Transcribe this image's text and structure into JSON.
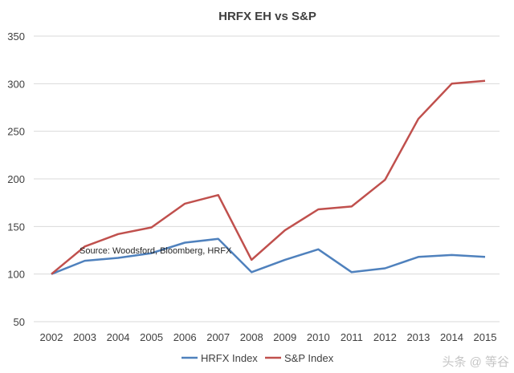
{
  "chart_data": {
    "type": "line",
    "title": "HRFX EH vs S&P",
    "annotation": "Source: Woodsford, Bloomberg, HRFX",
    "x": [
      2002,
      2003,
      2004,
      2005,
      2006,
      2007,
      2008,
      2009,
      2010,
      2011,
      2012,
      2013,
      2014,
      2015
    ],
    "x_tick_labels": [
      "2002",
      "2003",
      "2004",
      "2005",
      "2006",
      "2007",
      "2008",
      "2009",
      "2010",
      "2011",
      "2012",
      "2013",
      "2014",
      "2015"
    ],
    "y_tick_labels": [
      "50",
      "100",
      "150",
      "200",
      "250",
      "300",
      "350"
    ],
    "y_ticks": [
      50,
      100,
      150,
      200,
      250,
      300,
      350
    ],
    "ylim": [
      50,
      350
    ],
    "grid": true,
    "legend_position": "bottom",
    "series": [
      {
        "name": "HRFX Index",
        "color": "#4f81bd",
        "values": [
          100,
          114,
          117,
          122,
          133,
          137,
          102,
          115,
          126,
          102,
          106,
          118,
          120,
          118
        ]
      },
      {
        "name": "S&P Index",
        "color": "#c0504d",
        "values": [
          100,
          129,
          142,
          149,
          174,
          183,
          115,
          146,
          168,
          171,
          199,
          263,
          300,
          303
        ]
      }
    ]
  },
  "watermark": "头条 @ 等谷"
}
